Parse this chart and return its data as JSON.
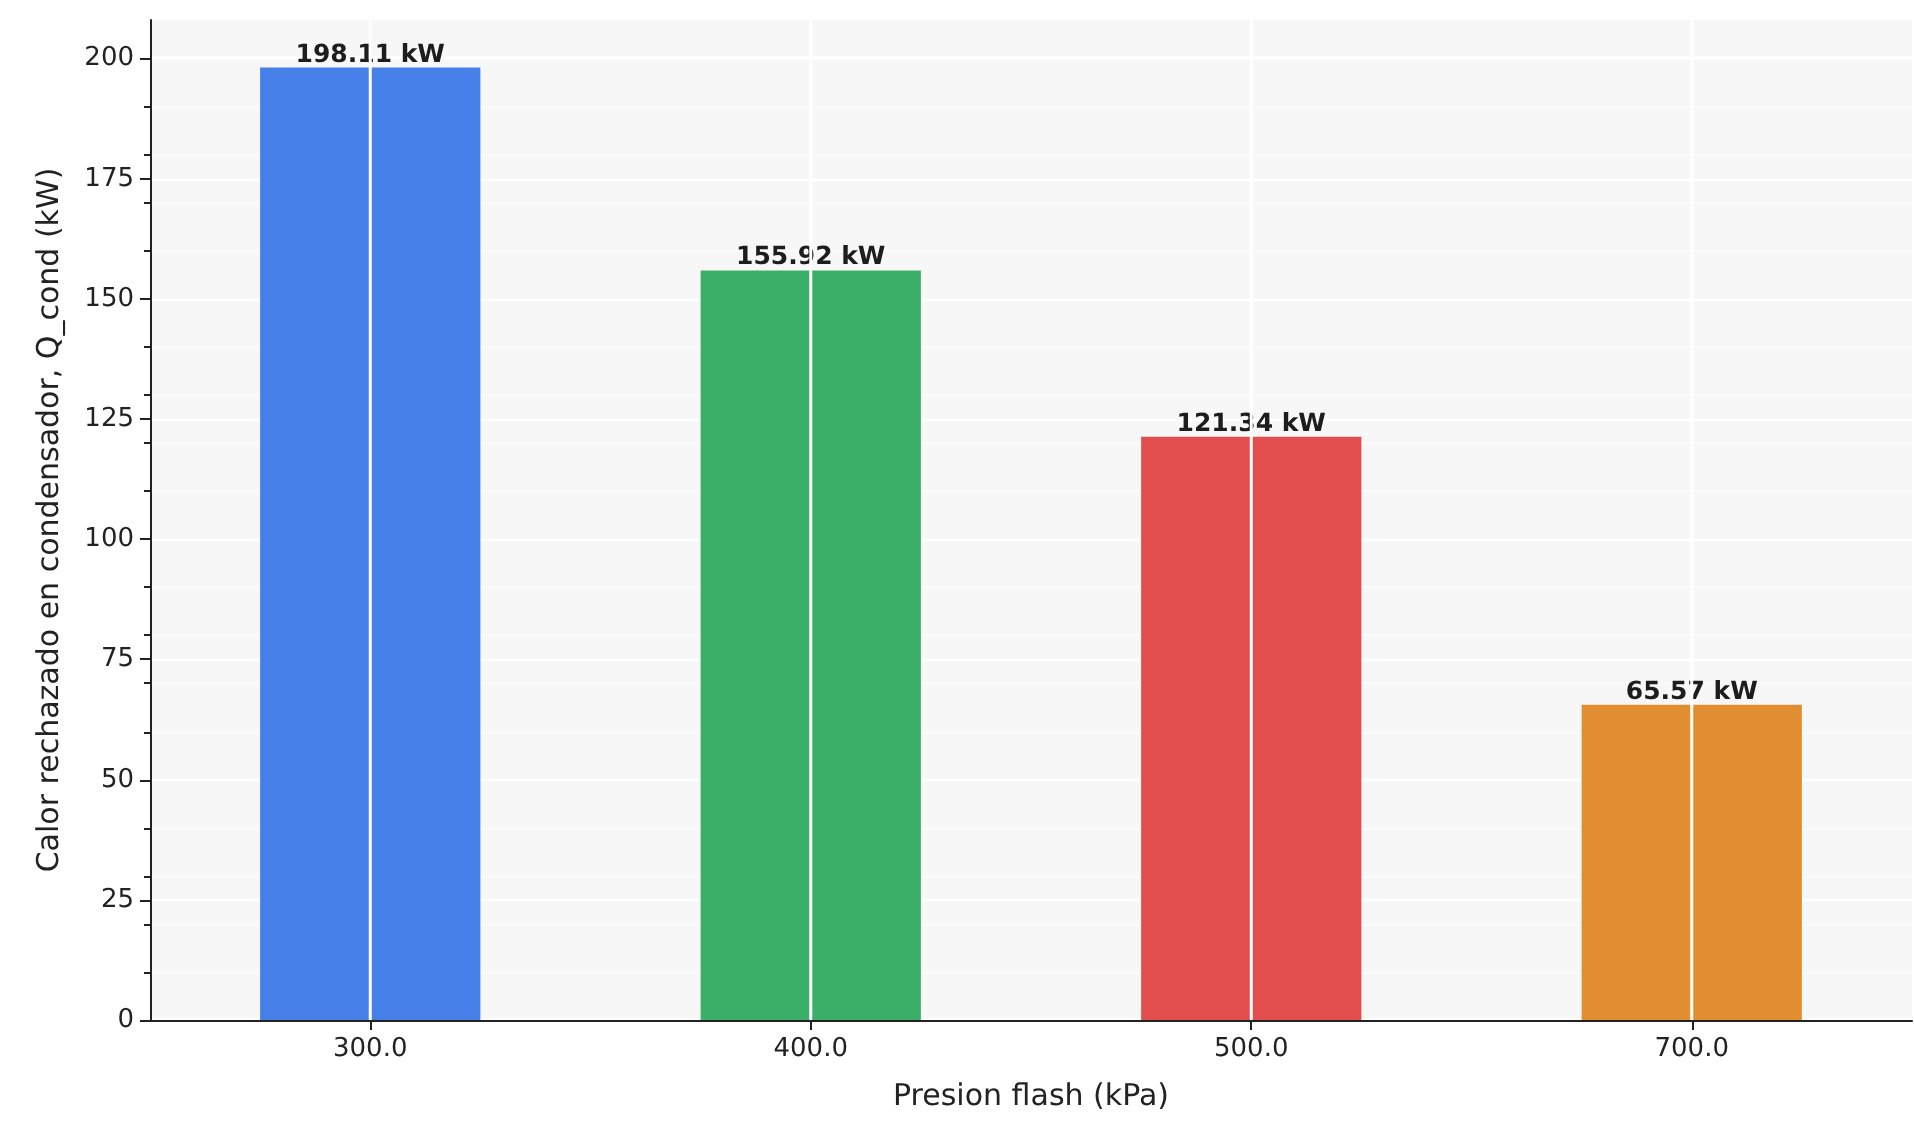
{
  "chart_data": {
    "type": "bar",
    "xlabel": "Presion flash (kPa)",
    "ylabel": "Calor rechazado en condensador, Q_cond (kW)",
    "categories": [
      "300.0",
      "400.0",
      "500.0",
      "700.0"
    ],
    "values": [
      198.11,
      155.92,
      121.34,
      65.57
    ],
    "colors": [
      "#3d78e8",
      "#30ab5f",
      "#e04343",
      "#df8826"
    ],
    "value_labels": [
      "198.11 kW",
      "155.92 kW",
      "121.34 kW",
      "65.57 kW"
    ],
    "ylim": [
      0,
      208
    ],
    "yticks": [
      0,
      25,
      50,
      75,
      100,
      125,
      150,
      175,
      200
    ],
    "grid": true
  }
}
